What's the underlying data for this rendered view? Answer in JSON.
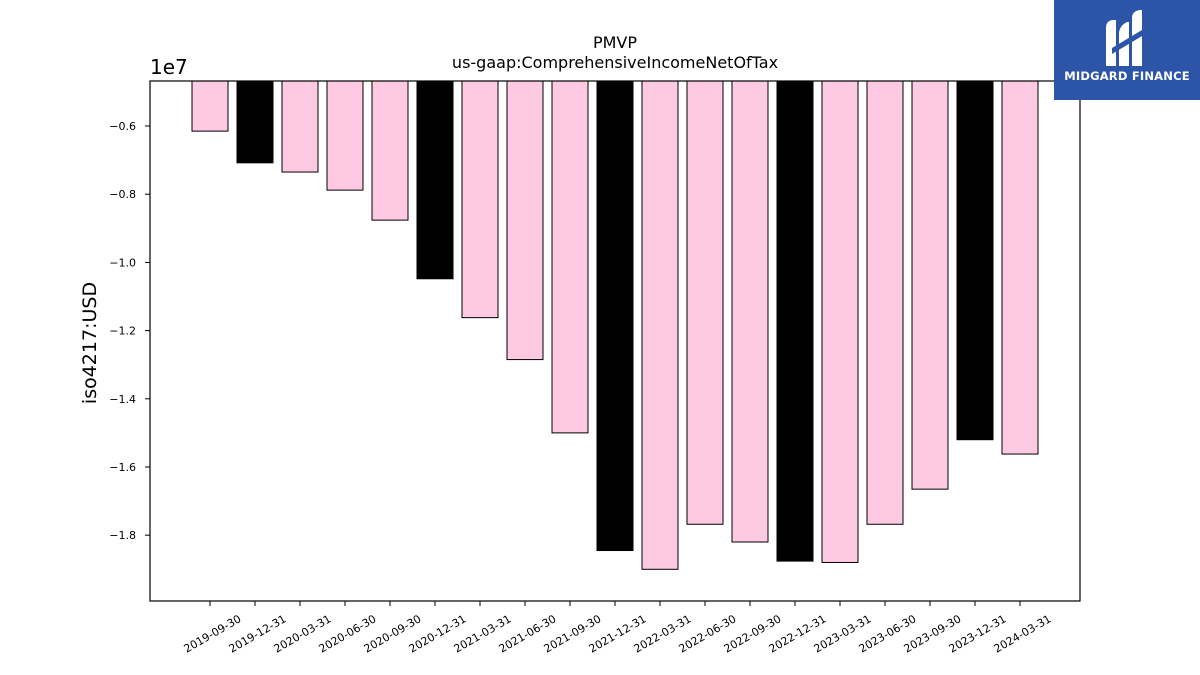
{
  "chart_data": {
    "type": "bar",
    "title": "PMVP",
    "subtitle": "us-gaap:ComprehensiveIncomeNetOfTax",
    "ylabel": "iso4217:USD",
    "xlabel": "",
    "offset_label": "1e7",
    "categories": [
      "2019-09-30",
      "2019-12-31",
      "2020-03-31",
      "2020-06-30",
      "2020-09-30",
      "2020-12-31",
      "2021-03-31",
      "2021-06-30",
      "2021-09-30",
      "2021-12-31",
      "2022-03-31",
      "2022-06-30",
      "2022-09-30",
      "2022-12-31",
      "2023-03-31",
      "2023-06-30",
      "2023-09-30",
      "2023-12-31",
      "2024-03-31"
    ],
    "values": [
      -6150000.0,
      -7080000.0,
      -7350000.0,
      -7880000.0,
      -8760000.0,
      -10480000.0,
      -11620000.0,
      -12850000.0,
      -15000000.0,
      -18450000.0,
      -19000000.0,
      -17680000.0,
      -18200000.0,
      -18760000.0,
      -18800000.0,
      -17680000.0,
      -16650000.0,
      -15200000.0,
      -15620000.0
    ],
    "bar_colors": [
      "#fdc9e3",
      "#000000",
      "#fdc9e3",
      "#fdc9e3",
      "#fdc9e3",
      "#000000",
      "#fdc9e3",
      "#fdc9e3",
      "#fdc9e3",
      "#000000",
      "#fdc9e3",
      "#fdc9e3",
      "#fdc9e3",
      "#000000",
      "#fdc9e3",
      "#fdc9e3",
      "#fdc9e3",
      "#000000",
      "#fdc9e3"
    ],
    "ylim": [
      -19930000.0,
      -4680000.0
    ],
    "yticks": [
      -6000000.0,
      -8000000.0,
      -10000000.0,
      -12000000.0,
      -14000000.0,
      -16000000.0,
      -18000000.0
    ],
    "ytick_labels": [
      "−0.6",
      "−0.8",
      "−1.0",
      "−1.2",
      "−1.4",
      "−1.6",
      "−1.8"
    ],
    "grid": false,
    "legend": "none"
  },
  "logo": {
    "text": "MIDGARD FINANCE",
    "icon": "midgard-logo-icon",
    "background": "#2c55a8"
  }
}
